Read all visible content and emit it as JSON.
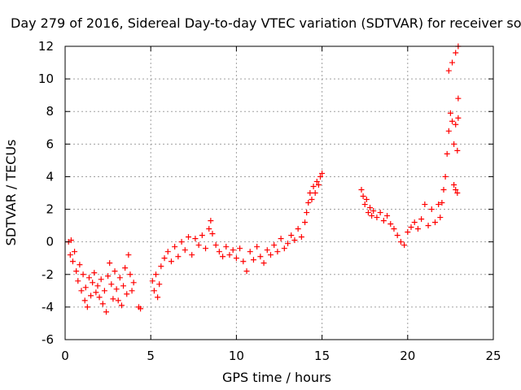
{
  "chart_data": {
    "type": "scatter",
    "title": "Day 279 of 2016, Sidereal Day-to-day VTEC variation (SDTVAR) for receiver so",
    "xlabel": "GPS time / hours",
    "ylabel": "SDTVAR / TECUs",
    "xlim": [
      0,
      25
    ],
    "ylim": [
      -6,
      12
    ],
    "x_ticks": [
      0,
      5,
      10,
      15,
      20,
      25
    ],
    "y_ticks": [
      -6,
      -4,
      -2,
      0,
      2,
      4,
      6,
      8,
      10,
      12
    ],
    "grid": true,
    "legend": "none",
    "marker": "plus",
    "colors": {
      "series": "#ff0000",
      "axes": "#000000",
      "grid": "#a0a0a0"
    },
    "series": [
      {
        "points": [
          [
            0.2,
            0.0
          ],
          [
            0.3,
            -0.8
          ],
          [
            0.35,
            0.1
          ],
          [
            0.45,
            -1.2
          ],
          [
            0.55,
            -0.6
          ],
          [
            0.65,
            -1.8
          ],
          [
            0.75,
            -2.4
          ],
          [
            0.85,
            -1.4
          ],
          [
            0.95,
            -3.0
          ],
          [
            1.05,
            -2.0
          ],
          [
            1.15,
            -3.6
          ],
          [
            1.2,
            -2.8
          ],
          [
            1.3,
            -4.0
          ],
          [
            1.4,
            -2.2
          ],
          [
            1.5,
            -3.3
          ],
          [
            1.6,
            -2.5
          ],
          [
            1.7,
            -1.9
          ],
          [
            1.8,
            -3.1
          ],
          [
            1.9,
            -2.7
          ],
          [
            2.0,
            -3.4
          ],
          [
            2.1,
            -2.3
          ],
          [
            2.2,
            -3.8
          ],
          [
            2.3,
            -3.0
          ],
          [
            2.4,
            -4.3
          ],
          [
            2.5,
            -2.1
          ],
          [
            2.6,
            -1.3
          ],
          [
            2.7,
            -2.6
          ],
          [
            2.8,
            -3.5
          ],
          [
            2.9,
            -1.8
          ],
          [
            3.0,
            -2.9
          ],
          [
            3.1,
            -3.6
          ],
          [
            3.2,
            -2.2
          ],
          [
            3.3,
            -3.9
          ],
          [
            3.4,
            -2.7
          ],
          [
            3.5,
            -1.6
          ],
          [
            3.6,
            -3.2
          ],
          [
            3.7,
            -0.8
          ],
          [
            3.8,
            -2.0
          ],
          [
            3.9,
            -3.0
          ],
          [
            4.0,
            -2.5
          ],
          [
            4.3,
            -4.0
          ],
          [
            4.4,
            -4.1
          ],
          [
            5.1,
            -2.4
          ],
          [
            5.2,
            -3.0
          ],
          [
            5.3,
            -2.0
          ],
          [
            5.4,
            -3.4
          ],
          [
            5.5,
            -2.6
          ],
          [
            5.6,
            -1.5
          ],
          [
            5.8,
            -1.0
          ],
          [
            6.0,
            -0.6
          ],
          [
            6.2,
            -1.2
          ],
          [
            6.4,
            -0.3
          ],
          [
            6.6,
            -0.9
          ],
          [
            6.8,
            0.0
          ],
          [
            7.0,
            -0.5
          ],
          [
            7.2,
            0.3
          ],
          [
            7.4,
            -0.8
          ],
          [
            7.6,
            0.2
          ],
          [
            7.8,
            -0.2
          ],
          [
            8.0,
            0.4
          ],
          [
            8.2,
            -0.4
          ],
          [
            8.4,
            0.8
          ],
          [
            8.5,
            1.3
          ],
          [
            8.6,
            0.5
          ],
          [
            8.8,
            -0.2
          ],
          [
            9.0,
            -0.6
          ],
          [
            9.2,
            -0.9
          ],
          [
            9.4,
            -0.3
          ],
          [
            9.6,
            -0.8
          ],
          [
            9.8,
            -0.5
          ],
          [
            10.0,
            -1.0
          ],
          [
            10.2,
            -0.4
          ],
          [
            10.4,
            -1.2
          ],
          [
            10.6,
            -1.8
          ],
          [
            10.8,
            -0.6
          ],
          [
            11.0,
            -1.1
          ],
          [
            11.2,
            -0.3
          ],
          [
            11.4,
            -0.9
          ],
          [
            11.6,
            -1.3
          ],
          [
            11.8,
            -0.5
          ],
          [
            12.0,
            -0.8
          ],
          [
            12.2,
            -0.2
          ],
          [
            12.4,
            -0.6
          ],
          [
            12.6,
            0.2
          ],
          [
            12.8,
            -0.4
          ],
          [
            13.0,
            -0.1
          ],
          [
            13.2,
            0.4
          ],
          [
            13.4,
            0.1
          ],
          [
            13.6,
            0.8
          ],
          [
            13.8,
            0.3
          ],
          [
            14.0,
            1.2
          ],
          [
            14.1,
            1.8
          ],
          [
            14.2,
            2.4
          ],
          [
            14.3,
            3.0
          ],
          [
            14.4,
            2.6
          ],
          [
            14.5,
            3.4
          ],
          [
            14.6,
            3.0
          ],
          [
            14.7,
            3.7
          ],
          [
            14.8,
            3.5
          ],
          [
            14.9,
            4.0
          ],
          [
            15.0,
            4.2
          ],
          [
            17.3,
            3.2
          ],
          [
            17.4,
            2.8
          ],
          [
            17.5,
            2.3
          ],
          [
            17.6,
            2.6
          ],
          [
            17.7,
            1.8
          ],
          [
            17.8,
            2.1
          ],
          [
            17.9,
            1.6
          ],
          [
            18.0,
            1.9
          ],
          [
            18.2,
            1.5
          ],
          [
            18.4,
            1.8
          ],
          [
            18.6,
            1.3
          ],
          [
            18.8,
            1.6
          ],
          [
            19.0,
            1.1
          ],
          [
            19.2,
            0.8
          ],
          [
            19.4,
            0.4
          ],
          [
            19.6,
            0.0
          ],
          [
            19.8,
            -0.2
          ],
          [
            20.0,
            0.6
          ],
          [
            20.2,
            0.9
          ],
          [
            20.4,
            1.2
          ],
          [
            20.6,
            0.8
          ],
          [
            20.8,
            1.4
          ],
          [
            21.0,
            2.3
          ],
          [
            21.2,
            1.0
          ],
          [
            21.4,
            2.0
          ],
          [
            21.6,
            1.2
          ],
          [
            21.8,
            2.3
          ],
          [
            21.9,
            1.5
          ],
          [
            22.0,
            2.4
          ],
          [
            22.1,
            3.2
          ],
          [
            22.2,
            4.0
          ],
          [
            22.3,
            5.4
          ],
          [
            22.4,
            6.8
          ],
          [
            22.5,
            7.9
          ],
          [
            22.6,
            7.4
          ],
          [
            22.7,
            6.0
          ],
          [
            22.8,
            7.2
          ],
          [
            22.9,
            5.6
          ],
          [
            22.95,
            7.6
          ],
          [
            22.7,
            3.5
          ],
          [
            22.8,
            3.2
          ],
          [
            22.9,
            3.0
          ],
          [
            22.4,
            10.5
          ],
          [
            22.6,
            11.0
          ],
          [
            22.8,
            11.6
          ],
          [
            22.95,
            12.0
          ],
          [
            22.95,
            8.8
          ]
        ]
      }
    ]
  }
}
